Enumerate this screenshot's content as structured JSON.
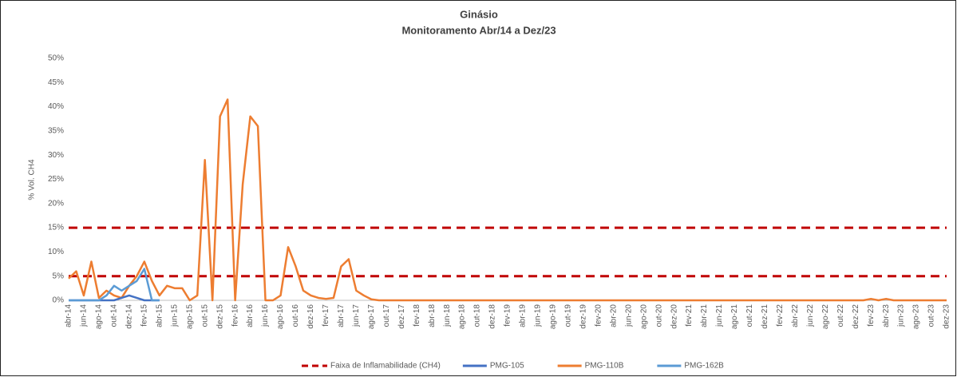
{
  "chart_data": {
    "type": "line",
    "title": "Ginásio",
    "subtitle": "Monitoramento Abr/14 a Dez/23",
    "y_label": "% Vol. CH4",
    "grid": false,
    "legend": "bottom",
    "ylim": [
      0,
      50
    ],
    "yticks": [
      {
        "value": 0,
        "label": "0%"
      },
      {
        "value": 5,
        "label": "5%"
      },
      {
        "value": 10,
        "label": "10%"
      },
      {
        "value": 15,
        "label": "15%"
      },
      {
        "value": 20,
        "label": "20%"
      },
      {
        "value": 25,
        "label": "25%"
      },
      {
        "value": 30,
        "label": "30%"
      },
      {
        "value": 35,
        "label": "35%"
      },
      {
        "value": 40,
        "label": "40%"
      },
      {
        "value": 45,
        "label": "45%"
      },
      {
        "value": 50,
        "label": "50%"
      }
    ],
    "bands": {
      "name": "Faixa de Inflamabilidade (CH4)",
      "color": "#c00000",
      "values": [
        5,
        15
      ]
    },
    "categories": [
      "abr-14",
      null,
      "jun-14",
      null,
      "ago-14",
      null,
      "out-14",
      null,
      "dez-14",
      null,
      "fev-15",
      null,
      "abr-15",
      null,
      "jun-15",
      null,
      "ago-15",
      null,
      "out-15",
      null,
      "dez-15",
      null,
      "fev-16",
      null,
      "abr-16",
      null,
      "jun-16",
      null,
      "ago-16",
      null,
      "out-16",
      null,
      "dez-16",
      null,
      "fev-17",
      null,
      "abr-17",
      null,
      "jun-17",
      null,
      "ago-17",
      null,
      "out-17",
      null,
      "dez-17",
      null,
      "fev-18",
      null,
      "abr-18",
      null,
      "jun-18",
      null,
      "ago-18",
      null,
      "out-18",
      null,
      "dez-18",
      null,
      "fev-19",
      null,
      "abr-19",
      null,
      "jun-19",
      null,
      "ago-19",
      null,
      "out-19",
      null,
      "dez-19",
      null,
      "fev-20",
      null,
      "abr-20",
      null,
      "jun-20",
      null,
      "ago-20",
      null,
      "out-20",
      null,
      "dez-20",
      null,
      "fev-21",
      null,
      "abr-21",
      null,
      "jun-21",
      null,
      "ago-21",
      null,
      "out-21",
      null,
      "dez-21",
      null,
      "fev-22",
      null,
      "abr-22",
      null,
      "jun-22",
      null,
      "ago-22",
      null,
      "out-22",
      null,
      "dez-22",
      null,
      "fev-23",
      null,
      "abr-23",
      null,
      "jun-23",
      null,
      "ago-23",
      null,
      "out-23",
      null,
      "dez-23"
    ],
    "series": [
      {
        "name": "PMG-105",
        "color": "#4472c4",
        "values": [
          0,
          0,
          0,
          0,
          0,
          0,
          0,
          0.5,
          1,
          0.5,
          0,
          0,
          0,
          null,
          null,
          null,
          null,
          null,
          null,
          null,
          null,
          null,
          null,
          null,
          null,
          null,
          null,
          null,
          null,
          null,
          null,
          null,
          null,
          null,
          null,
          null,
          null,
          null,
          null,
          null,
          null,
          null,
          null,
          null,
          null,
          null,
          null,
          null,
          null,
          null,
          null,
          null,
          null,
          null,
          null,
          null,
          null,
          null,
          null,
          null,
          null,
          null,
          null,
          null,
          null,
          null,
          null,
          null,
          null,
          null,
          null,
          null,
          null,
          null,
          null,
          null,
          null,
          null,
          null,
          null,
          null,
          null,
          null,
          null,
          null,
          null,
          null,
          null,
          null,
          null,
          null,
          null,
          null,
          null,
          null,
          null,
          null,
          null,
          null,
          null,
          null,
          null,
          null,
          null,
          null,
          null,
          null,
          null,
          null,
          null,
          null,
          null,
          null,
          null,
          null,
          null,
          null
        ]
      },
      {
        "name": "PMG-110B",
        "color": "#ed7d31",
        "values": [
          4.5,
          6,
          1,
          8,
          0.5,
          2,
          1,
          0.5,
          3,
          5,
          8,
          4,
          1,
          3,
          2.5,
          2.5,
          0,
          1,
          29,
          0,
          38,
          41.5,
          0,
          24,
          38,
          36,
          0,
          0,
          1,
          11,
          7,
          2,
          1,
          0.5,
          0.3,
          0.5,
          7,
          8.5,
          2,
          1,
          0.2,
          0,
          0,
          0,
          0,
          0,
          0,
          0,
          0,
          0,
          0,
          0,
          0,
          0,
          0,
          0,
          0,
          0,
          0,
          0,
          0,
          0,
          0,
          0,
          0,
          0,
          0,
          0,
          0,
          0,
          0,
          0,
          0,
          0,
          0,
          0,
          0,
          0,
          0,
          0,
          0,
          0,
          0,
          0,
          0,
          0,
          0,
          0,
          0,
          0,
          0,
          0,
          0,
          0,
          0,
          0,
          0,
          0,
          0,
          0,
          0,
          0,
          0,
          0,
          0,
          0,
          0.3,
          0,
          0.3,
          0,
          0,
          0,
          0,
          0,
          0,
          0,
          0
        ]
      },
      {
        "name": "PMG-162B",
        "color": "#5b9bd5",
        "values": [
          0,
          0,
          0,
          0,
          0,
          1,
          3,
          2,
          3,
          4,
          6.5,
          0,
          0,
          null,
          null,
          null,
          null,
          null,
          null,
          null,
          null,
          null,
          null,
          null,
          null,
          null,
          null,
          null,
          null,
          null,
          null,
          null,
          null,
          null,
          null,
          null,
          null,
          null,
          null,
          null,
          null,
          null,
          null,
          null,
          null,
          null,
          null,
          null,
          null,
          null,
          null,
          null,
          null,
          null,
          null,
          null,
          null,
          null,
          null,
          null,
          null,
          null,
          null,
          null,
          null,
          null,
          null,
          null,
          null,
          null,
          null,
          null,
          null,
          null,
          null,
          null,
          null,
          null,
          null,
          null,
          null,
          null,
          null,
          null,
          null,
          null,
          null,
          null,
          null,
          null,
          null,
          null,
          null,
          null,
          null,
          null,
          null,
          null,
          null,
          null,
          null,
          null,
          null,
          null,
          null,
          null,
          null,
          null,
          null,
          null,
          null,
          null,
          null,
          null,
          null,
          null,
          null
        ]
      }
    ]
  }
}
